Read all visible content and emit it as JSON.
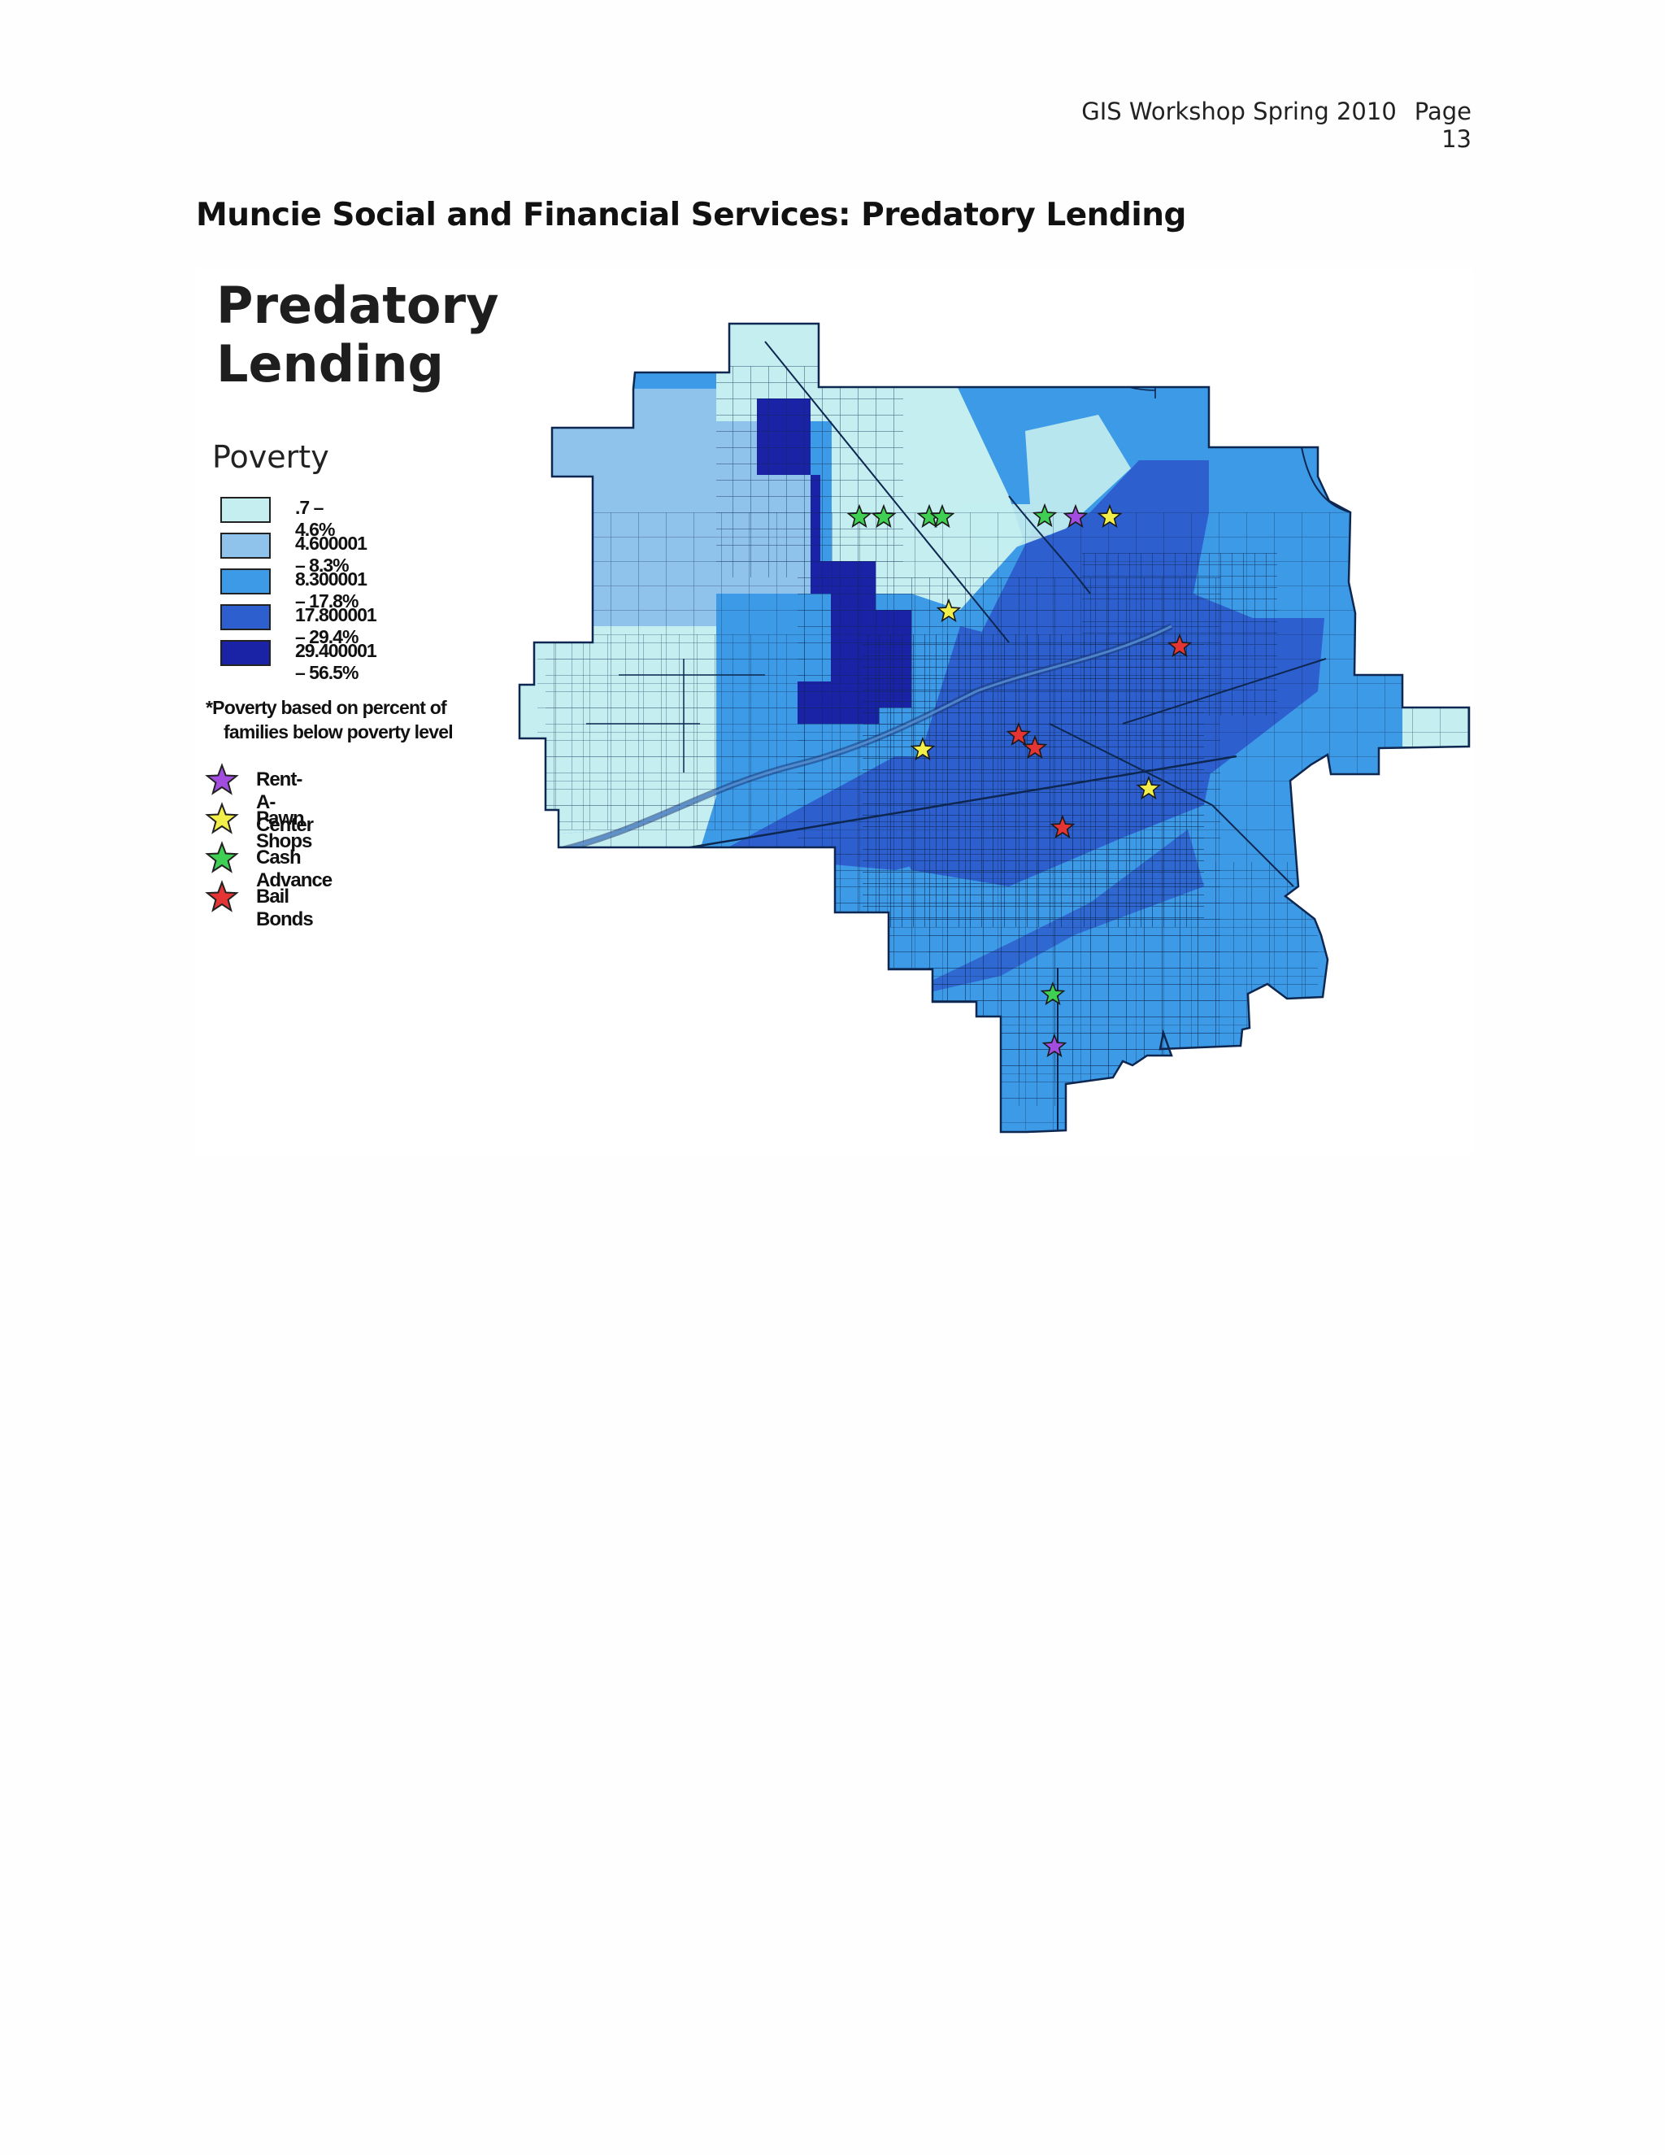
{
  "header": {
    "workshop": "GIS Workshop Spring 2010",
    "page": "Page 13"
  },
  "title": "Muncie Social and Financial Services: Predatory Lending",
  "map": {
    "title_line1": "Predatory",
    "title_line2": "Lending",
    "legend_title": "Poverty",
    "classes": [
      {
        "label": ".7 – 4.6%",
        "color": "#c4eef0"
      },
      {
        "label": "4.600001 – 8.3%",
        "color": "#8fc3ec"
      },
      {
        "label": "8.300001 – 17.8%",
        "color": "#3d9ae6"
      },
      {
        "label": "17.800001 – 29.4%",
        "color": "#2e5fce"
      },
      {
        "label": "29.400001 – 56.5%",
        "color": "#1a22a6"
      }
    ],
    "note_line1": "*Poverty based  on percent  of",
    "note_line2": "families below poverty level",
    "symbols": [
      {
        "label": "Rent-A-Center",
        "color": "#a34de0",
        "icon": "star-purple"
      },
      {
        "label": "Pawn Shops",
        "color": "#f2ef4b",
        "icon": "star-yellow"
      },
      {
        "label": "Cash Advance",
        "color": "#3fcf52",
        "icon": "star-green"
      },
      {
        "label": "Bail Bonds",
        "color": "#e53434",
        "icon": "star-red"
      }
    ]
  }
}
